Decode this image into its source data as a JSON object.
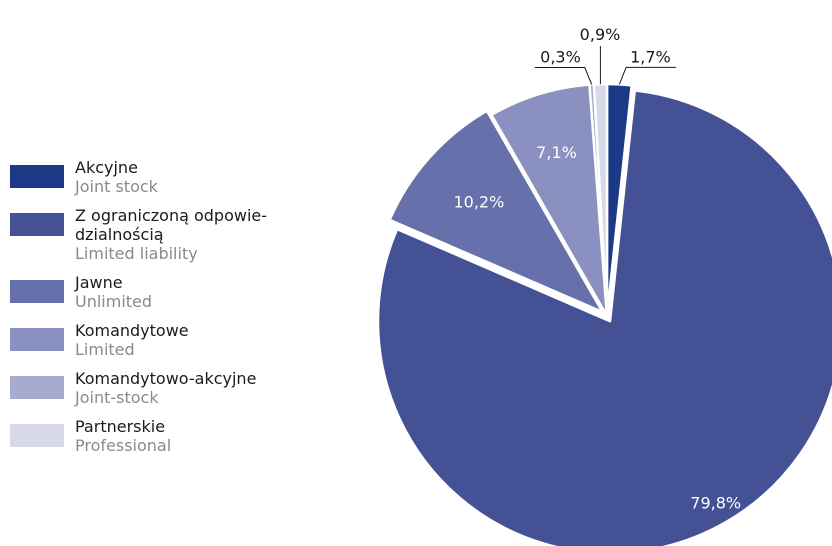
{
  "chart_data": {
    "type": "pie",
    "title": "",
    "slices": [
      {
        "pl": "Akcyjne",
        "en": "Joint stock",
        "value": 1.7,
        "label": "1,7%",
        "color": "#1c3987",
        "label_pos": "outside"
      },
      {
        "pl": "Z ograniczoną odpowie-\ndzialnością",
        "en": "Limited liability",
        "value": 79.8,
        "label": "79,8%",
        "color": "#445195",
        "label_pos": "inside",
        "exploded": true
      },
      {
        "pl": "Jawne",
        "en": "Unlimited",
        "value": 10.2,
        "label": "10,2%",
        "color": "#6670aa",
        "label_pos": "inside",
        "exploded": true
      },
      {
        "pl": "Komandytowe",
        "en": "Limited",
        "value": 7.1,
        "label": "7,1%",
        "color": "#8a90bf",
        "label_pos": "inside"
      },
      {
        "pl": "Komandytowo-akcyjne",
        "en": "Joint-stock",
        "value": 0.3,
        "label": "0,3%",
        "color": "#a7abd0",
        "label_pos": "outside"
      },
      {
        "pl": "Partnerskie",
        "en": "Professional",
        "value": 0.9,
        "label": "0,9%",
        "color": "#d7d9e9",
        "label_pos": "outside"
      }
    ]
  }
}
